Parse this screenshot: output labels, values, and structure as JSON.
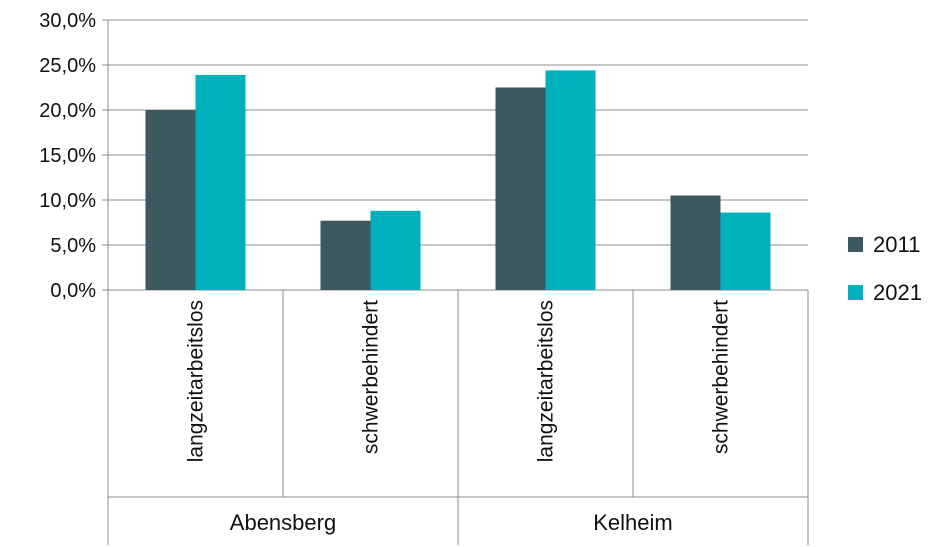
{
  "chart_data": {
    "type": "bar",
    "groups": [
      "Abensberg",
      "Kelheim"
    ],
    "categories": [
      "langzeitarbeitslos",
      "schwerbehindert",
      "langzeitarbeitslos",
      "schwerbehindert"
    ],
    "series": [
      {
        "name": "2011",
        "color": "#3d5960",
        "values": [
          20.0,
          7.7,
          22.5,
          10.5
        ]
      },
      {
        "name": "2021",
        "color": "#00b0bd",
        "values": [
          23.9,
          8.8,
          24.4,
          8.6
        ]
      }
    ],
    "y_ticks": [
      "0,0%",
      "5,0%",
      "10,0%",
      "15,0%",
      "20,0%",
      "25,0%",
      "30,0%"
    ],
    "ylim": [
      0,
      30
    ],
    "grid": true,
    "legend_position": "right"
  }
}
